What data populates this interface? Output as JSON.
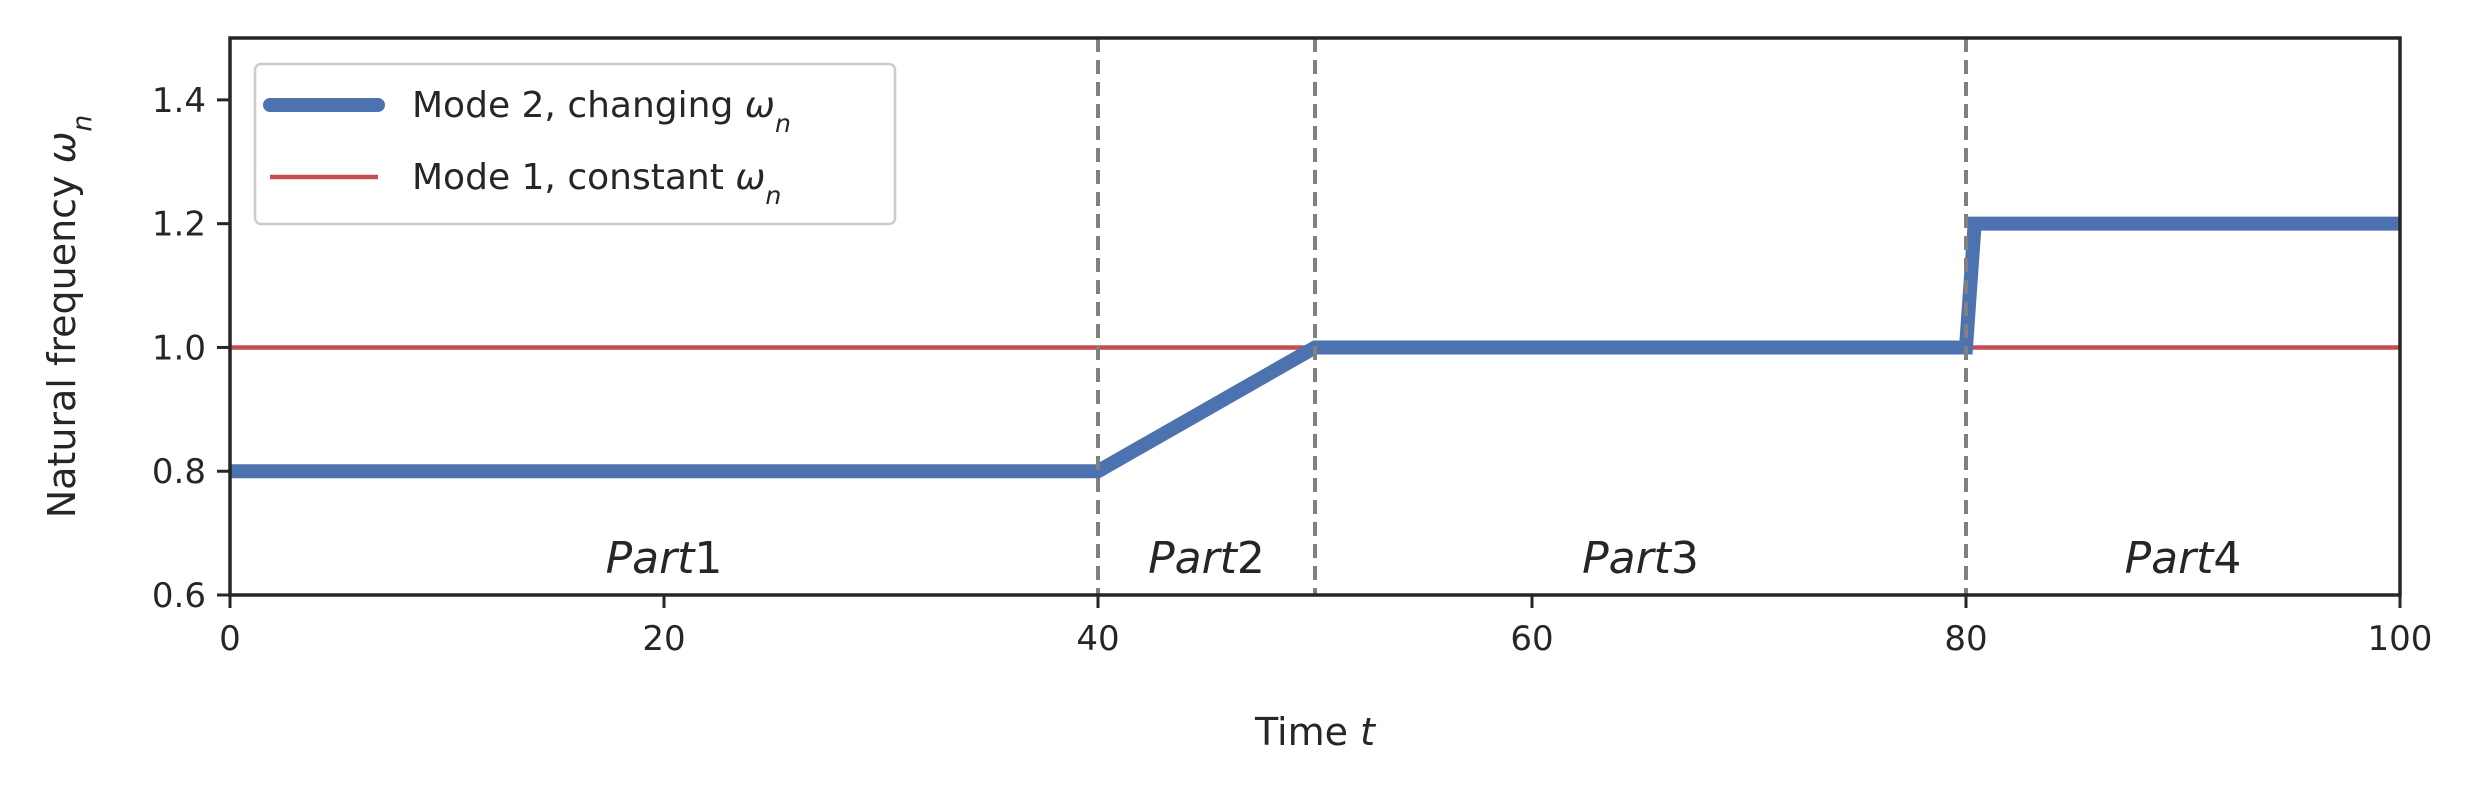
{
  "chart_data": {
    "type": "line",
    "xlabel": {
      "text": "Time ",
      "var": "t"
    },
    "ylabel": {
      "text": "Natural frequency ",
      "var": "ω",
      "sub": "n"
    },
    "xlim": [
      0,
      100
    ],
    "ylim": [
      0.6,
      1.5
    ],
    "xticks": [
      0,
      20,
      40,
      60,
      80,
      100
    ],
    "yticks": [
      0.6,
      0.8,
      1.0,
      1.2,
      1.4
    ],
    "xtick_labels": [
      "0",
      "20",
      "40",
      "60",
      "80",
      "100"
    ],
    "ytick_labels": [
      "0.6",
      "0.8",
      "1.0",
      "1.2",
      "1.4"
    ],
    "grid": false,
    "legend_position": "top-left",
    "series": [
      {
        "name": {
          "text": "Mode 2, changing ",
          "var": "ω",
          "sub": "n"
        },
        "color": "#4c72b0",
        "style": "thick",
        "x": [
          0,
          40,
          50,
          80,
          80.4,
          100
        ],
        "y": [
          0.8,
          0.8,
          1.0,
          1.0,
          1.2,
          1.2
        ]
      },
      {
        "name": {
          "text": "Mode 1, constant ",
          "var": "ω",
          "sub": "n"
        },
        "color": "#c44e52",
        "style": "thin",
        "x": [
          0,
          100
        ],
        "y": [
          1.0,
          1.0
        ]
      }
    ],
    "vlines": {
      "x": [
        40,
        50,
        80
      ],
      "color": "#808080",
      "style": "dashed"
    },
    "regions": [
      {
        "label": {
          "it": "Part",
          "num": "1"
        },
        "x": 20,
        "y": 0.66
      },
      {
        "label": {
          "it": "Part",
          "num": "2"
        },
        "x": 45,
        "y": 0.66
      },
      {
        "label": {
          "it": "Part",
          "num": "3"
        },
        "x": 65,
        "y": 0.66
      },
      {
        "label": {
          "it": "Part",
          "num": "4"
        },
        "x": 90,
        "y": 0.66
      }
    ]
  }
}
